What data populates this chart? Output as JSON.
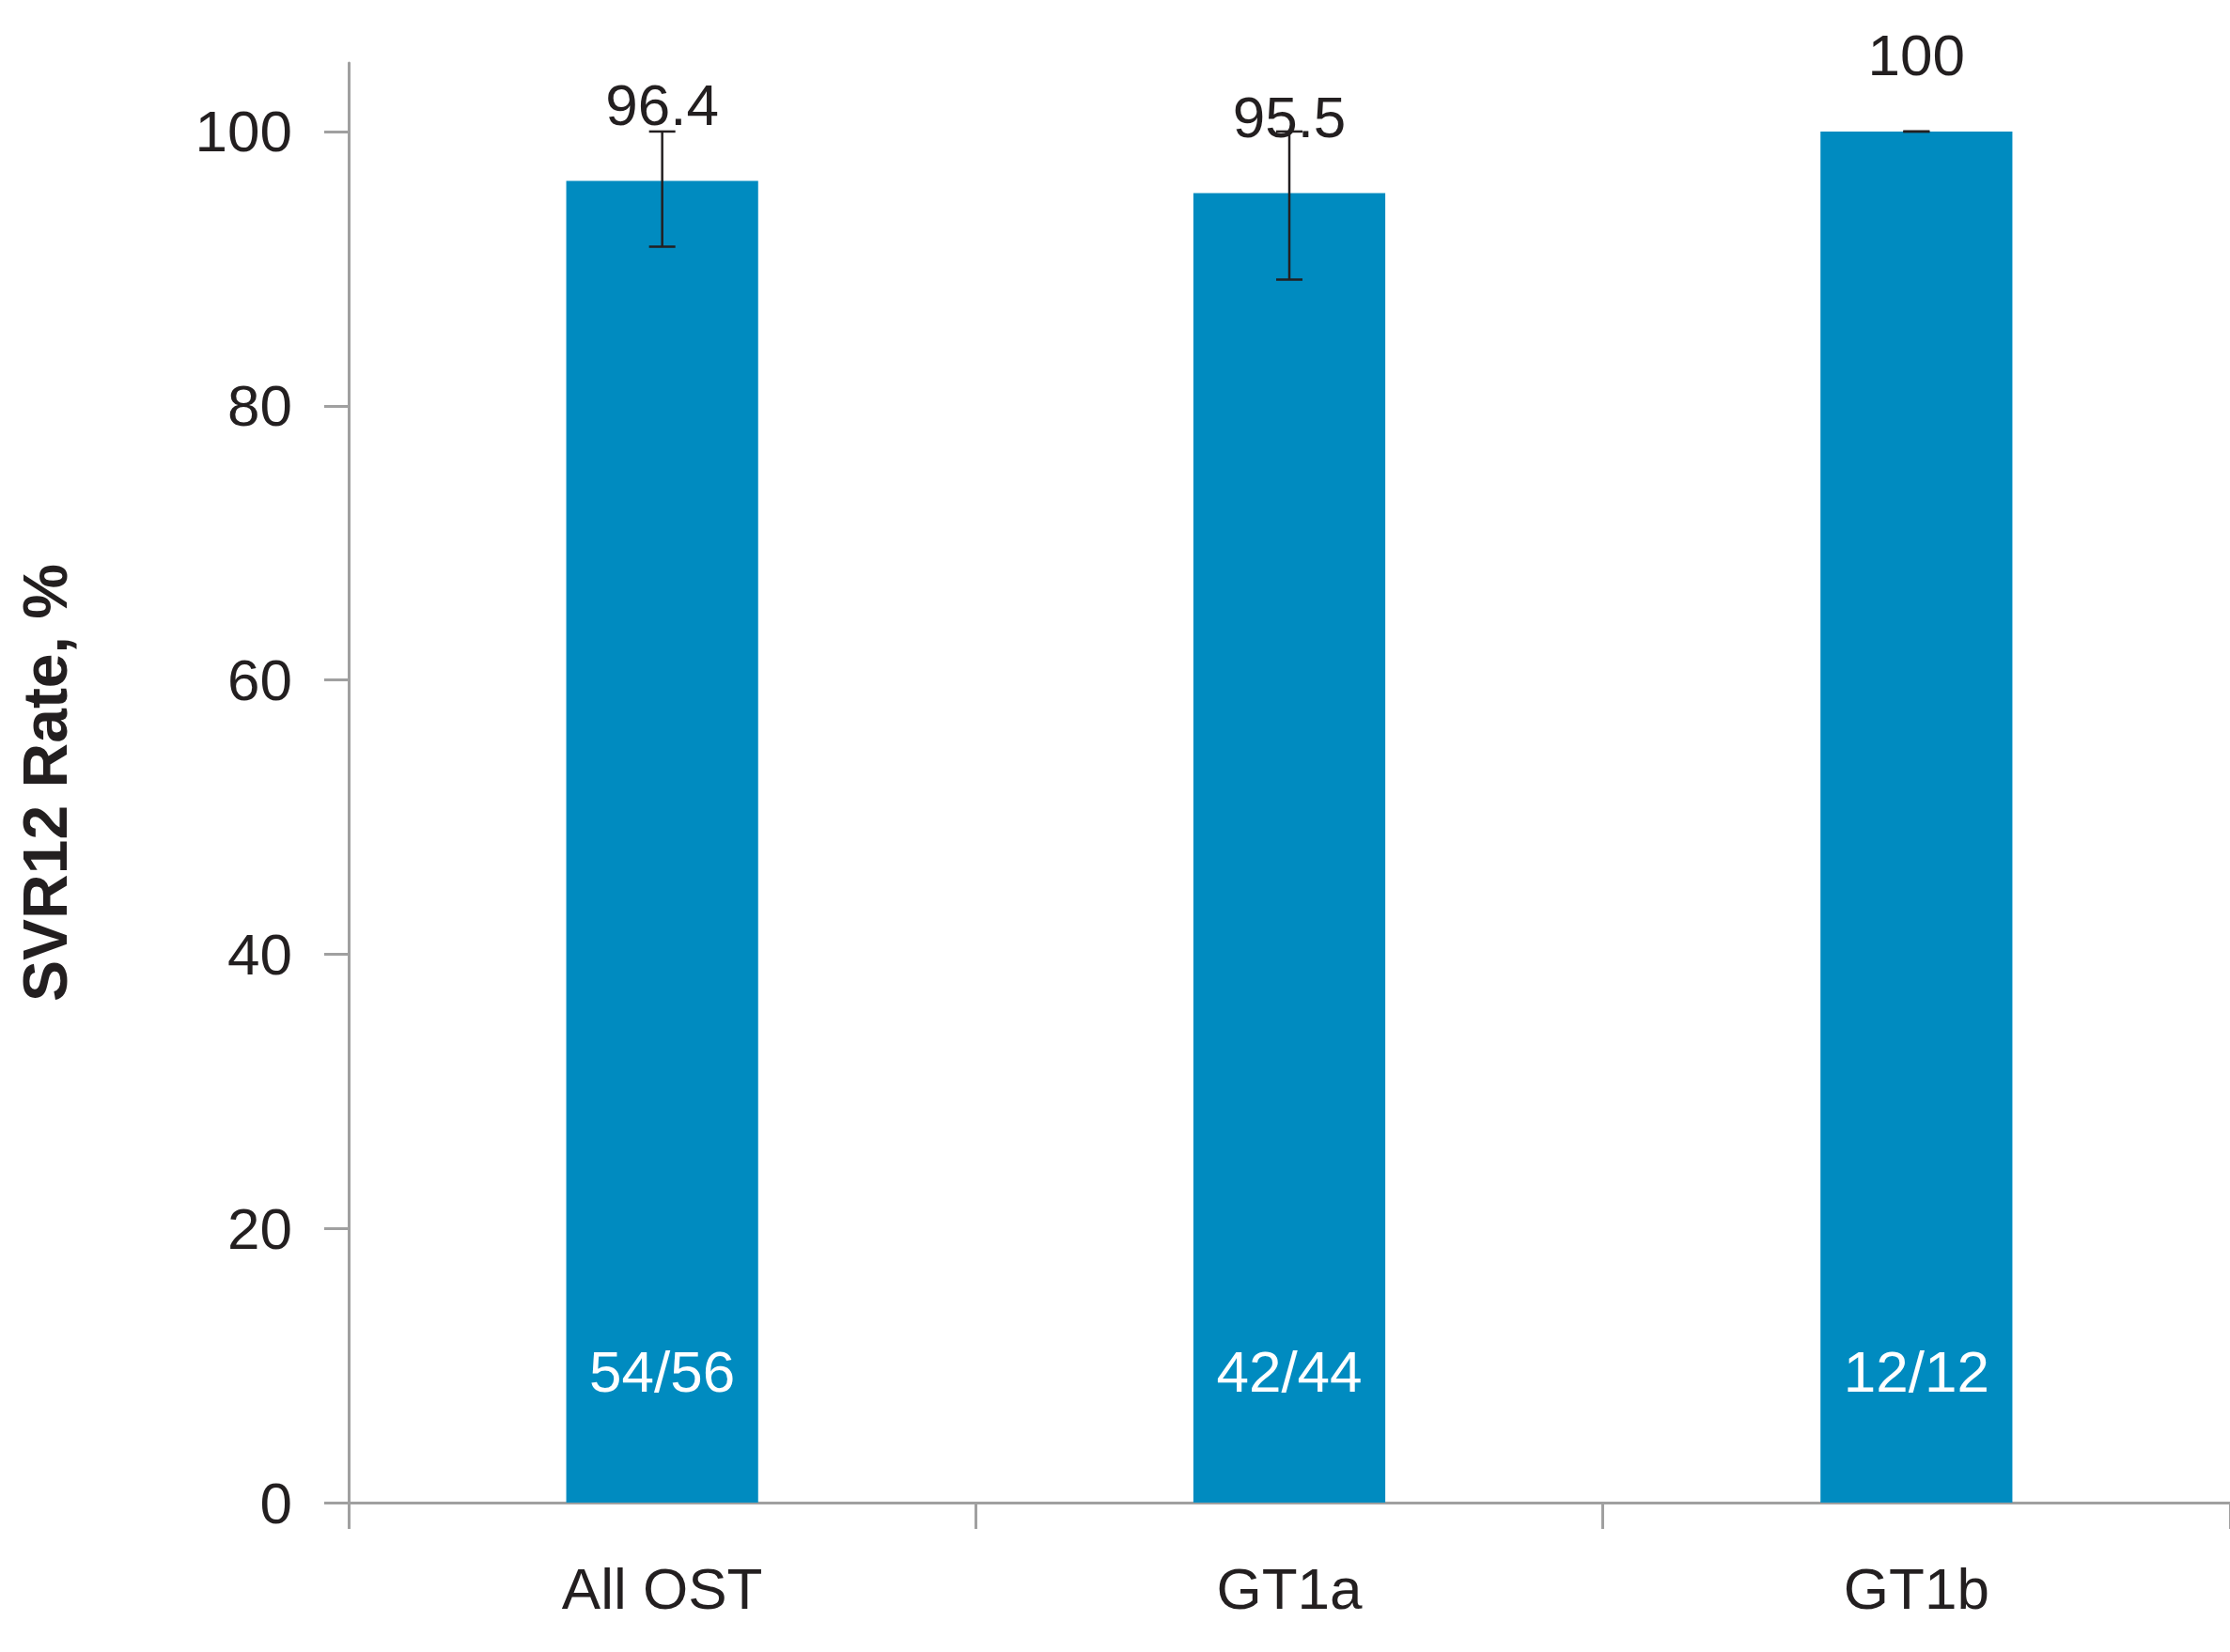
{
  "chart_data": {
    "type": "bar",
    "ylabel": "SVR12 Rate, %",
    "categories": [
      "All OST",
      "GT1a",
      "GT1b"
    ],
    "values": [
      96.4,
      95.5,
      100
    ],
    "color": "#008bc0",
    "errors": [
      [
        91.6,
        100
      ],
      [
        89.2,
        100
      ],
      [
        100,
        100
      ]
    ],
    "ylim": [
      0,
      105
    ],
    "yticks": [
      0,
      20,
      40,
      60,
      80,
      100
    ],
    "grid": false,
    "data_labels": true,
    "annotations": [
      "54/56",
      "42/44",
      "12/12"
    ]
  }
}
